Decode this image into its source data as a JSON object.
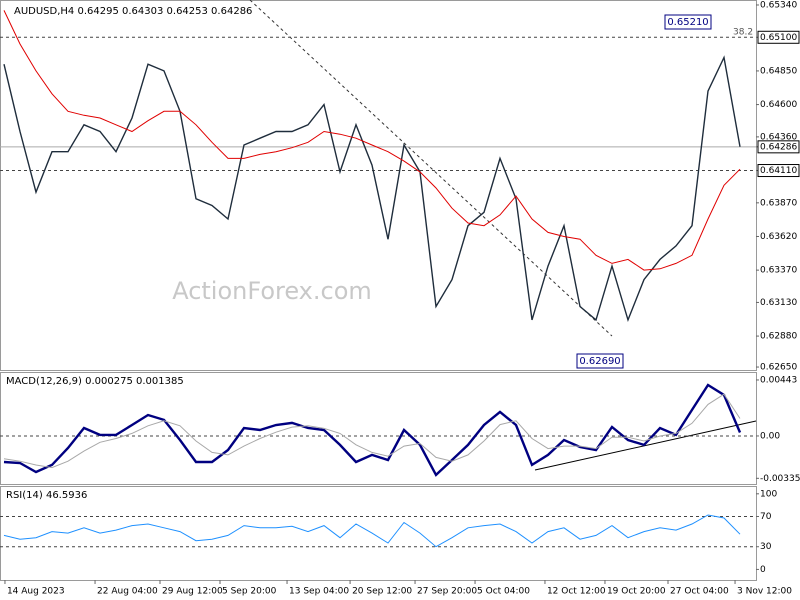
{
  "chart_data": [
    {
      "type": "line",
      "title": "AUDUSD,H4  0.64295 0.64303 0.64253 0.64286",
      "watermark": "ActionForex.com",
      "annotations": [
        "0.65210",
        "0.62690",
        "38.2"
      ],
      "xlim": [
        -0.25,
        47
      ],
      "ylim": [
        0.62628,
        0.65377
      ],
      "yticks": [
        {
          "value": 0.6534,
          "label": "0.65340"
        },
        {
          "value": 0.651,
          "label": "0.65100"
        },
        {
          "value": 0.6485,
          "label": "0.64850"
        },
        {
          "value": 0.646,
          "label": "0.64600"
        },
        {
          "value": 0.6436,
          "label": "0.64360"
        },
        {
          "value": 0.64286,
          "label": "0.64286"
        },
        {
          "value": 0.6411,
          "label": "0.64110"
        },
        {
          "value": 0.6387,
          "label": "0.63870"
        },
        {
          "value": 0.6362,
          "label": "0.63620"
        },
        {
          "value": 0.6337,
          "label": "0.63370"
        },
        {
          "value": 0.6313,
          "label": "0.63130"
        },
        {
          "value": 0.6288,
          "label": "0.62880"
        },
        {
          "value": 0.6265,
          "label": "0.62650"
        }
      ],
      "levels": [
        0.651,
        0.6411
      ],
      "last_price": 0.64286,
      "series": [
        {
          "color": "#1f2d3c",
          "values": [
            0.649,
            0.644,
            0.6395,
            0.6425,
            0.6425,
            0.6445,
            0.644,
            0.6425,
            0.645,
            0.649,
            0.6485,
            0.6455,
            0.639,
            0.6385,
            0.6375,
            0.643,
            0.6435,
            0.644,
            0.644,
            0.6445,
            0.646,
            0.641,
            0.6445,
            0.6415,
            0.636,
            0.643,
            0.641,
            0.631,
            0.633,
            0.637,
            0.638,
            0.642,
            0.639,
            0.63,
            0.634,
            0.637,
            0.631,
            0.63,
            0.634,
            0.63,
            0.633,
            0.6345,
            0.6355,
            0.637,
            0.647,
            0.6495,
            0.64286
          ]
        },
        {
          "color": "#e00000",
          "values": [
            0.653,
            0.6505,
            0.6485,
            0.6468,
            0.6455,
            0.6452,
            0.645,
            0.6445,
            0.644,
            0.6448,
            0.6455,
            0.6455,
            0.6445,
            0.6432,
            0.642,
            0.642,
            0.6423,
            0.6425,
            0.6428,
            0.6432,
            0.644,
            0.6438,
            0.6435,
            0.643,
            0.6425,
            0.6418,
            0.641,
            0.6398,
            0.6383,
            0.6372,
            0.637,
            0.6378,
            0.6392,
            0.6375,
            0.6365,
            0.6362,
            0.636,
            0.6348,
            0.6342,
            0.6345,
            0.6337,
            0.6338,
            0.6342,
            0.6348,
            0.6375,
            0.64,
            0.6412
          ]
        }
      ]
    },
    {
      "type": "line",
      "title": "MACD(12,26,9) 0.000275 0.001385",
      "xlim": [
        -0.25,
        47
      ],
      "ylim": [
        -0.00388,
        0.00506
      ],
      "yticks": [
        {
          "value": 0.00443,
          "label": "0.00443"
        },
        {
          "value": 0,
          "label": "0.00"
        },
        {
          "value": -0.003351,
          "label": "-0.003351"
        }
      ],
      "levels": [
        0
      ],
      "series": [
        {
          "color": "#000080",
          "values": [
            -0.00206,
            -0.00214,
            -0.00285,
            -0.00229,
            -0.00095,
            0.00063,
            8e-05,
            8e-05,
            0.00087,
            0.00166,
            0.00127,
            -0.00032,
            -0.00206,
            -0.00206,
            -0.00111,
            0.00063,
            0.00047,
            0.00087,
            0.00103,
            0.00063,
            0.00047,
            -0.00071,
            -0.00206,
            -0.0015,
            -0.0019,
            0.00047,
            -0.00071,
            -0.00308,
            -0.0019,
            -0.00071,
            0.00087,
            0.0019,
            0.00087,
            -0.00229,
            -0.0015,
            -0.00032,
            -0.00087,
            -0.00111,
            0.00071,
            -0.00032,
            -0.00071,
            0.00063,
            8e-05,
            0.00206,
            0.00403,
            0.00324,
            0.000275
          ]
        },
        {
          "color": "#a8a8a8",
          "values": [
            -0.0018,
            -0.002,
            -0.0023,
            -0.0025,
            -0.002,
            -0.0012,
            -0.0005,
            -0.0002,
            0.0002,
            0.0008,
            0.0012,
            0.0008,
            -0.0004,
            -0.0013,
            -0.0015,
            -0.0008,
            -0.0002,
            0.0003,
            0.0007,
            0.0008,
            0.0006,
            0.0002,
            -0.0007,
            -0.0013,
            -0.0016,
            -0.0008,
            -0.0006,
            -0.0017,
            -0.002,
            -0.0015,
            -0.0004,
            0.0009,
            0.0012,
            -0.0002,
            -0.001,
            -0.0008,
            -0.0008,
            -0.001,
            -0.0001,
            -0.0001,
            -0.0004,
            0.0,
            0.0002,
            0.001,
            0.0025,
            0.0033,
            0.001385
          ]
        }
      ]
    },
    {
      "type": "line",
      "title": "RSI(14) 46.5936",
      "xlim": [
        -0.25,
        47
      ],
      "xticks": [
        {
          "value": 0.06,
          "label": "14 Aug 2023"
        },
        {
          "value": 5.69,
          "label": "22 Aug 04:00"
        },
        {
          "value": 9.75,
          "label": "29 Aug 12:00"
        },
        {
          "value": 13.5,
          "label": "5 Sep 20:00"
        },
        {
          "value": 17.69,
          "label": "13 Sep 04:00"
        },
        {
          "value": 21.63,
          "label": "20 Sep 12:00"
        },
        {
          "value": 25.69,
          "label": "27 Sep 20:00"
        },
        {
          "value": 29.44,
          "label": "5 Oct 04:00"
        },
        {
          "value": 33.81,
          "label": "12 Oct 12:00"
        },
        {
          "value": 37.56,
          "label": "19 Oct 20:00"
        },
        {
          "value": 41.5,
          "label": "27 Oct 04:00"
        },
        {
          "value": 45.69,
          "label": "3 Nov 12:00"
        }
      ],
      "ylim": [
        -14,
        109
      ],
      "yticks": [
        100,
        70,
        30,
        0
      ],
      "levels": [
        70,
        30
      ],
      "series": [
        {
          "color": "#1e90ff",
          "values": [
            45,
            40,
            42,
            50,
            48,
            55,
            48,
            52,
            58,
            60,
            55,
            50,
            38,
            40,
            45,
            58,
            55,
            55,
            57,
            50,
            58,
            42,
            60,
            48,
            35,
            62,
            48,
            30,
            42,
            55,
            58,
            60,
            50,
            35,
            50,
            55,
            40,
            45,
            58,
            42,
            50,
            55,
            52,
            60,
            72,
            68,
            46.5936
          ]
        }
      ]
    }
  ]
}
